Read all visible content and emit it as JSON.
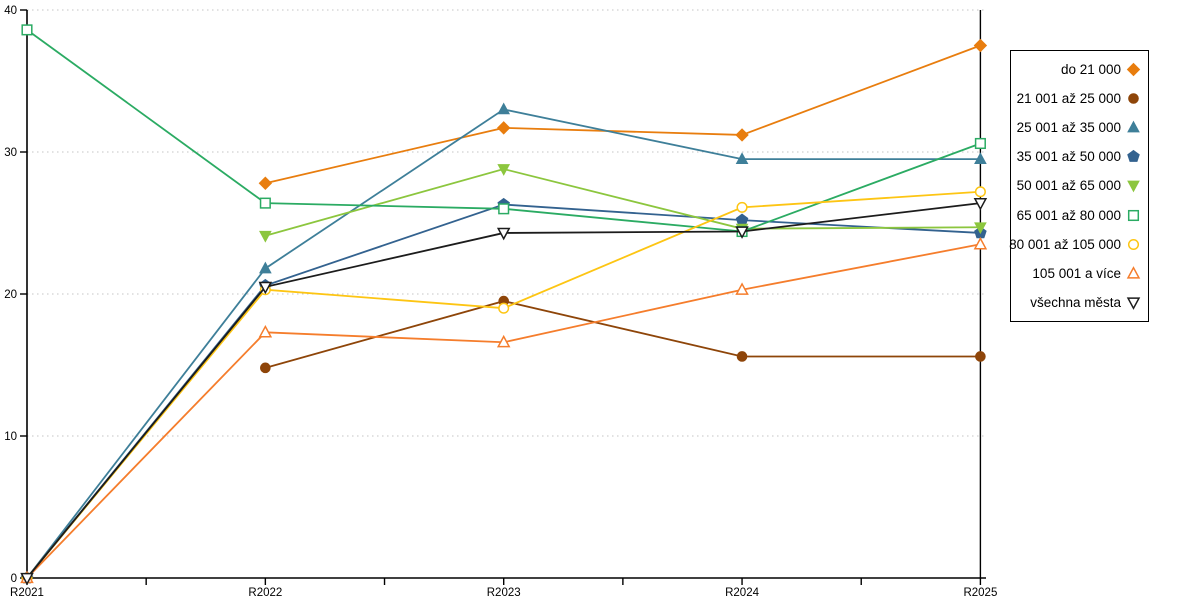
{
  "chart_data": {
    "type": "line",
    "title": "",
    "categories": [
      "R2021",
      "R2022",
      "R2023",
      "R2024",
      "R2025"
    ],
    "ytick_labels": [
      "0",
      "10",
      "20",
      "30",
      "40"
    ],
    "yticks": [
      0,
      10,
      20,
      30,
      40
    ],
    "ylim": [
      0,
      40
    ],
    "grid": "horizontal-dotted",
    "grid_color": "#c4c4c4",
    "axis_color": "#000000",
    "legend": {
      "position": "right",
      "border_color": "#000000",
      "background": "#ffffff"
    },
    "series": [
      {
        "name": "do 21 000",
        "color": "#e87d0e",
        "marker": "diamond",
        "fill": "solid",
        "values": [
          null,
          27.8,
          31.7,
          31.2,
          37.5
        ]
      },
      {
        "name": "21 001 až 25 000",
        "color": "#8e4509",
        "marker": "circle",
        "fill": "solid",
        "values": [
          null,
          14.8,
          19.5,
          15.6,
          15.6
        ]
      },
      {
        "name": "25 001 až 35 000",
        "color": "#3e7f99",
        "marker": "triangle-up",
        "fill": "solid",
        "values": [
          0,
          21.8,
          33.0,
          29.5,
          29.5
        ]
      },
      {
        "name": "35 001 až 50 000",
        "color": "#33628f",
        "marker": "pentagon",
        "fill": "solid",
        "values": [
          0,
          20.6,
          26.3,
          25.2,
          24.3
        ]
      },
      {
        "name": "50 001 až 65 000",
        "color": "#8cc63e",
        "marker": "triangle-down",
        "fill": "solid",
        "values": [
          null,
          24.1,
          28.8,
          24.6,
          24.7
        ]
      },
      {
        "name": "65 001 až 80 000",
        "color": "#2bab63",
        "marker": "square",
        "fill": "open",
        "values": [
          38.6,
          26.4,
          26.0,
          24.4,
          30.6
        ]
      },
      {
        "name": "80 001 až 105 000",
        "color": "#fdc513",
        "marker": "circle",
        "fill": "open",
        "values": [
          0,
          20.3,
          19.0,
          26.1,
          27.2
        ]
      },
      {
        "name": "105 001 a více",
        "color": "#f57d2c",
        "marker": "triangle-up",
        "fill": "open",
        "values": [
          0,
          17.3,
          16.6,
          20.3,
          23.5
        ]
      },
      {
        "name": "všechna města",
        "color": "#1c1c1c",
        "marker": "triangle-down",
        "fill": "open",
        "values": [
          0,
          20.5,
          24.3,
          24.4,
          26.4
        ]
      }
    ]
  }
}
